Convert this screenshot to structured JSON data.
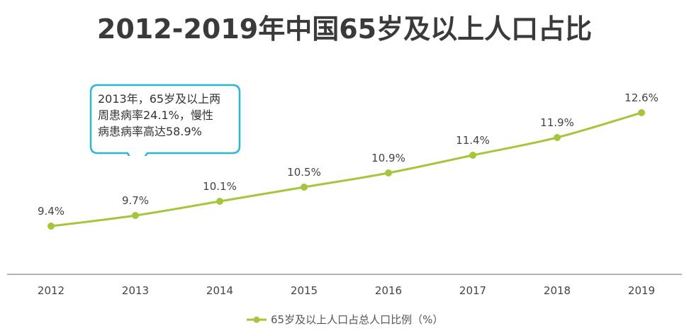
{
  "chart_data": {
    "type": "line",
    "title": "2012-2019年中国65岁及以上人口占比",
    "categories": [
      "2012",
      "2013",
      "2014",
      "2015",
      "2016",
      "2017",
      "2018",
      "2019"
    ],
    "series": [
      {
        "name": "65岁及以上人口占总人口比例（%）",
        "values": [
          9.4,
          9.7,
          10.1,
          10.5,
          10.9,
          11.4,
          11.9,
          12.6
        ],
        "labels": [
          "9.4%",
          "9.7%",
          "10.1%",
          "10.5%",
          "10.9%",
          "11.4%",
          "11.9%",
          "12.6%"
        ],
        "color": "#a5c63b"
      }
    ],
    "annotation": {
      "lines": [
        "2013年，65岁及以上两",
        "周患病率24.1%，慢性",
        "病患病率高达58.9%"
      ],
      "border_color": "#2bb5d6"
    },
    "grid": false,
    "legend_position": "bottom"
  }
}
